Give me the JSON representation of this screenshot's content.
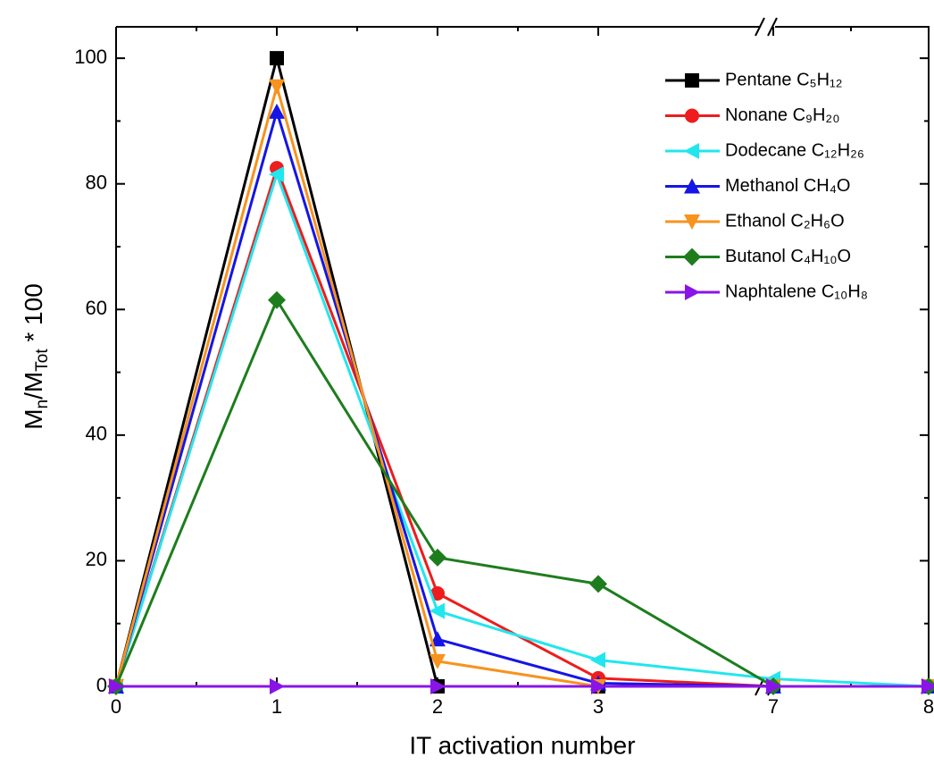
{
  "chart_data": {
    "type": "line",
    "x_label": "IT activation number",
    "y_label": [
      "M",
      "n",
      "/M",
      "Tot",
      " * 100"
    ],
    "categories": [
      "0",
      "1",
      "2",
      "3",
      "7",
      "8"
    ],
    "axis_break_after": "3",
    "ylim": [
      0,
      105
    ],
    "yticks": [
      0,
      20,
      40,
      60,
      80,
      100
    ],
    "legend": "top-right",
    "series": [
      {
        "name": "Pentane C₅H₁₂",
        "color": "#000000",
        "marker": "square",
        "values": [
          0,
          100,
          0,
          0,
          0,
          0
        ]
      },
      {
        "name": "Nonane C₉H₂₀",
        "color": "#ee1c1c",
        "marker": "circle",
        "values": [
          0,
          82.5,
          14.8,
          1.3,
          0,
          0
        ]
      },
      {
        "name": "Dodecane C₁₂H₂₆",
        "color": "#22e6ee",
        "marker": "triangle-left",
        "values": [
          0,
          81.5,
          12,
          4.2,
          1.2,
          0
        ]
      },
      {
        "name": "Methanol CH₄O",
        "color": "#1515e6",
        "marker": "triangle-up",
        "values": [
          0,
          91.5,
          7.5,
          0.5,
          0,
          0
        ]
      },
      {
        "name": "Ethanol C₂H₆O",
        "color": "#f7931e",
        "marker": "triangle-down",
        "values": [
          0,
          95.5,
          4,
          0,
          0,
          0
        ]
      },
      {
        "name": "Butanol C₄H₁₀O",
        "color": "#1d7d1d",
        "marker": "diamond",
        "values": [
          0,
          61.5,
          20.5,
          16.3,
          0,
          0
        ]
      },
      {
        "name": "Naphtalene C₁₀H₈",
        "color": "#8a14e8",
        "marker": "triangle-right",
        "values": [
          0,
          0,
          0,
          0,
          0,
          0
        ]
      }
    ]
  }
}
